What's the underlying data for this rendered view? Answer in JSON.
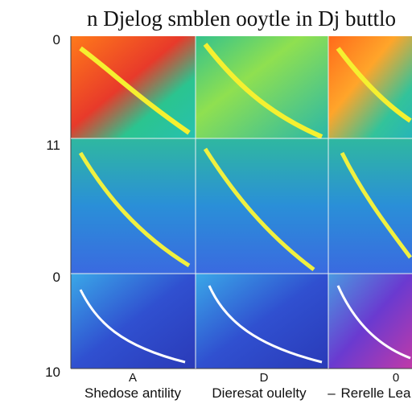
{
  "header": {
    "title": "n Djelog smblen ooytle in Dj buttlo"
  },
  "y_labels": [
    "0",
    "11",
    "0",
    "10"
  ],
  "column_labels": [
    "A",
    "D",
    "0"
  ],
  "footer_labels": [
    "Shedose antility",
    "Dieresat oulelty",
    "–",
    "Rerelle Lea"
  ]
}
